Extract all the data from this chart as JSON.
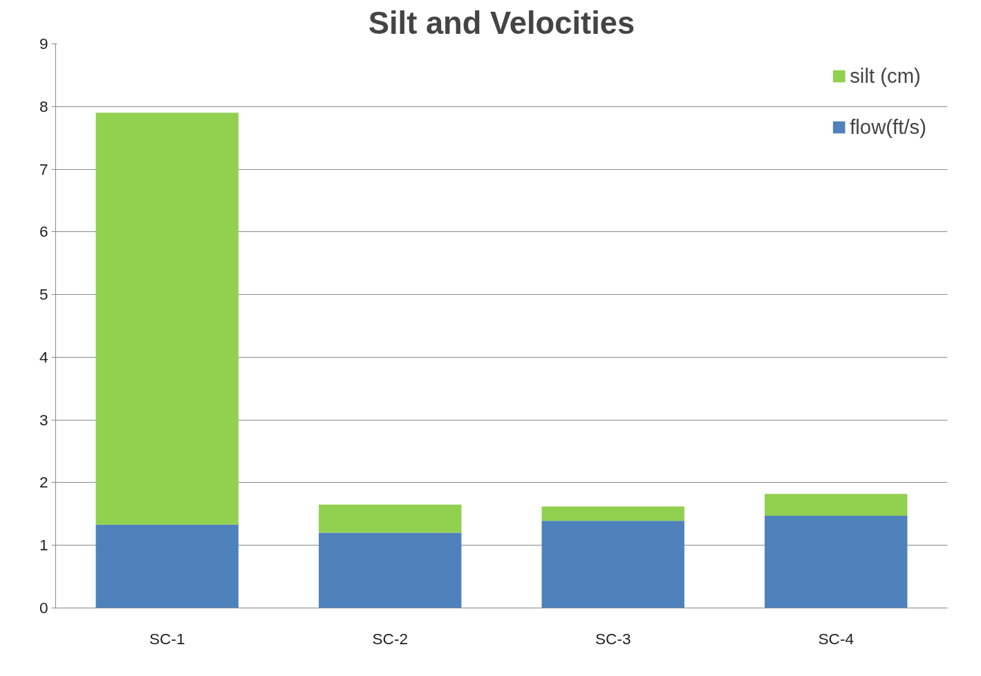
{
  "chart_data": {
    "type": "bar",
    "title": "Silt and Velocities",
    "categories": [
      "SC-1",
      "SC-2",
      "SC-3",
      "SC-4"
    ],
    "stacked": true,
    "series": [
      {
        "name": "flow(ft/s)",
        "color": "#4f81bd",
        "values": [
          1.33,
          1.2,
          1.39,
          1.47
        ]
      },
      {
        "name": "silt (cm)",
        "color": "#92d050",
        "values": [
          6.57,
          0.45,
          0.23,
          0.35
        ]
      }
    ],
    "ylim": [
      0,
      9
    ],
    "yticks": [
      0,
      1,
      2,
      3,
      4,
      5,
      6,
      7,
      8,
      9
    ],
    "grid": "y",
    "legend": "top right"
  }
}
